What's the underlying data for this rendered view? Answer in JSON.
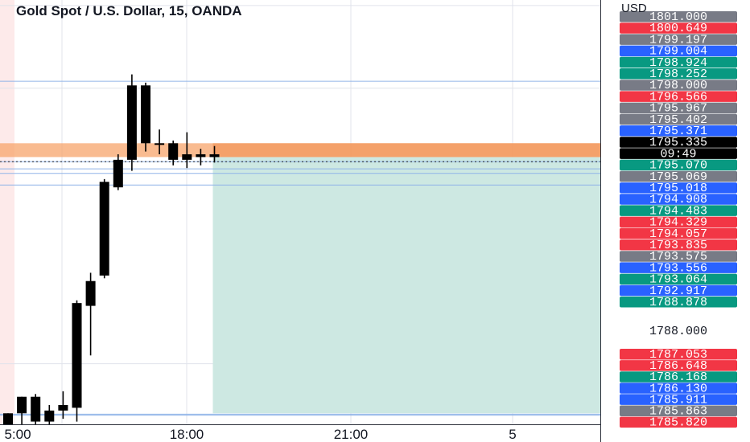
{
  "chart": {
    "title": "Gold Spot / U.S. Dollar, 15, OANDA",
    "currency": "USD"
  },
  "colors": {
    "red": "#f23645",
    "blue": "#2962ff",
    "gray": "#787b86",
    "green": "#089981",
    "black": "#000000",
    "stop_zone": "#f7a46b",
    "target_zone": "#cde8e2"
  },
  "chart_data": {
    "type": "candlestick",
    "title": "Gold Spot / U.S. Dollar, 15, OANDA",
    "ylabel": "USD",
    "ylim": [
      1785.8,
      1801.2
    ],
    "x_ticks": [
      "5:00",
      "18:00",
      "21:00",
      "5"
    ],
    "y_ticks": [
      1801.0,
      1798.0,
      1788.0
    ],
    "grid": true,
    "candles": [
      {
        "o": 1785.8,
        "h": 1786.2,
        "l": 1785.8,
        "c": 1786.2
      },
      {
        "o": 1786.2,
        "h": 1786.8,
        "l": 1785.8,
        "c": 1786.8
      },
      {
        "o": 1786.8,
        "h": 1786.9,
        "l": 1785.8,
        "c": 1785.9
      },
      {
        "o": 1785.9,
        "h": 1786.5,
        "l": 1785.8,
        "c": 1786.3
      },
      {
        "o": 1786.3,
        "h": 1787.0,
        "l": 1786.0,
        "c": 1786.5
      },
      {
        "o": 1786.4,
        "h": 1790.3,
        "l": 1785.9,
        "c": 1790.2
      },
      {
        "o": 1790.1,
        "h": 1791.3,
        "l": 1788.3,
        "c": 1791.0
      },
      {
        "o": 1791.2,
        "h": 1794.7,
        "l": 1791.1,
        "c": 1794.6
      },
      {
        "o": 1794.4,
        "h": 1795.6,
        "l": 1794.3,
        "c": 1795.4
      },
      {
        "o": 1795.4,
        "h": 1798.5,
        "l": 1795.0,
        "c": 1798.1
      },
      {
        "o": 1798.1,
        "h": 1798.2,
        "l": 1795.7,
        "c": 1796.0
      },
      {
        "o": 1796.0,
        "h": 1796.5,
        "l": 1795.6,
        "c": 1796.0
      },
      {
        "o": 1796.0,
        "h": 1796.1,
        "l": 1795.2,
        "c": 1795.4
      },
      {
        "o": 1795.4,
        "h": 1796.4,
        "l": 1795.1,
        "c": 1795.6
      },
      {
        "o": 1795.5,
        "h": 1795.8,
        "l": 1795.2,
        "c": 1795.6
      },
      {
        "o": 1795.6,
        "h": 1795.9,
        "l": 1795.3,
        "c": 1795.5
      }
    ],
    "stop_zone": [
      1795.5,
      1796.0
    ],
    "target_zone": [
      1786.2,
      1795.5
    ],
    "horizontal_lines": [
      1798.252,
      1795.335,
      1795.07,
      1794.908,
      1794.483,
      1786.168,
      1786.13
    ],
    "price_labels": [
      {
        "text": "1801.000",
        "color": "gray"
      },
      {
        "text": "1800.649",
        "color": "red"
      },
      {
        "text": "1799.197",
        "color": "gray"
      },
      {
        "text": "1799.004",
        "color": "blue"
      },
      {
        "text": "1798.924",
        "color": "green"
      },
      {
        "text": "1798.252",
        "color": "green"
      },
      {
        "text": "1798.000",
        "color": "gray"
      },
      {
        "text": "1796.566",
        "color": "red"
      },
      {
        "text": "1795.967",
        "color": "gray"
      },
      {
        "text": "1795.402",
        "color": "gray"
      },
      {
        "text": "1795.371",
        "color": "blue"
      },
      {
        "text": "1795.335",
        "color": "black"
      },
      {
        "text": "09:49",
        "color": "black"
      },
      {
        "text": "1795.070",
        "color": "green"
      },
      {
        "text": "1795.069",
        "color": "gray"
      },
      {
        "text": "1795.018",
        "color": "blue"
      },
      {
        "text": "1794.908",
        "color": "blue"
      },
      {
        "text": "1794.483",
        "color": "green"
      },
      {
        "text": "1794.329",
        "color": "red"
      },
      {
        "text": "1794.057",
        "color": "red"
      },
      {
        "text": "1793.835",
        "color": "red"
      },
      {
        "text": "1793.575",
        "color": "gray"
      },
      {
        "text": "1793.556",
        "color": "blue"
      },
      {
        "text": "1793.064",
        "color": "green"
      },
      {
        "text": "1792.917",
        "color": "blue"
      },
      {
        "text": "1788.878",
        "color": "green"
      },
      {
        "text": "1788.000",
        "color": "plain"
      },
      {
        "text": "1787.053",
        "color": "red"
      },
      {
        "text": "1786.648",
        "color": "red"
      },
      {
        "text": "1786.168",
        "color": "green"
      },
      {
        "text": "1786.130",
        "color": "blue"
      },
      {
        "text": "1785.911",
        "color": "blue"
      },
      {
        "text": "1785.863",
        "color": "gray"
      },
      {
        "text": "1785.820",
        "color": "red"
      }
    ]
  }
}
